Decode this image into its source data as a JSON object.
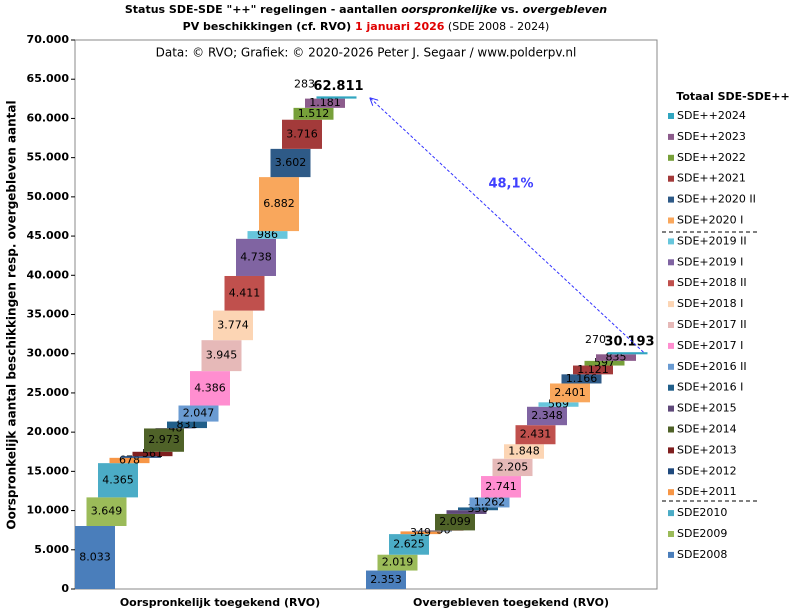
{
  "chart_data": {
    "type": "waterfall",
    "title_line1": [
      "Status SDE-SDE \"++\" regelingen - aantallen ",
      "oorspronkelijke",
      " vs. ",
      "overgebleven"
    ],
    "title_line2": [
      "PV beschikkingen (cf. RVO) ",
      "1 januari 2026",
      " (SDE 2008 - 2024)"
    ],
    "subtitle": "Data: © RVO; Grafiek: © 2020-2026 Peter J. Segaar / www.polderpv.nl",
    "y_label": "Oorspronkelijk aantal beschikkingen resp. overgebleven aantal",
    "legend_title": "Totaal SDE-SDE++",
    "categories": [
      "Oorspronkelijk toegekend (RVO)",
      "Overgebleven toegekend (RVO)"
    ],
    "ylim": [
      0,
      70000
    ],
    "yticks": [
      {
        "value": 0,
        "label": "0"
      },
      {
        "value": 5000,
        "label": "5.000"
      },
      {
        "value": 10000,
        "label": "10.000"
      },
      {
        "value": 15000,
        "label": "15.000"
      },
      {
        "value": 20000,
        "label": "20.000"
      },
      {
        "value": 25000,
        "label": "25.000"
      },
      {
        "value": 30000,
        "label": "30.000"
      },
      {
        "value": 35000,
        "label": "35.000"
      },
      {
        "value": 40000,
        "label": "40.000"
      },
      {
        "value": 45000,
        "label": "45.000"
      },
      {
        "value": 50000,
        "label": "50.000"
      },
      {
        "value": 55000,
        "label": "55.000"
      },
      {
        "value": 60000,
        "label": "60.000"
      },
      {
        "value": 65000,
        "label": "65.000"
      },
      {
        "value": 70000,
        "label": "70.000"
      }
    ],
    "series": [
      {
        "name": "SDE2008",
        "color": "#4a7ebb",
        "values": [
          8033,
          2353
        ],
        "value_labels": [
          "8.033",
          "2.353"
        ]
      },
      {
        "name": "SDE2009",
        "color": "#9bbb59",
        "values": [
          3649,
          2019
        ],
        "value_labels": [
          "3.649",
          "2.019"
        ]
      },
      {
        "name": "SDE2010",
        "color": "#4bacc6",
        "values": [
          4365,
          2625
        ],
        "value_labels": [
          "4.365",
          "2.625"
        ]
      },
      {
        "name": "SDE+2011",
        "color": "#f79646",
        "values": [
          678,
          349
        ],
        "value_labels": [
          "678",
          "349"
        ]
      },
      {
        "name": "SDE+2012",
        "color": "#1f497d",
        "values": [
          210,
          90
        ],
        "value_labels": [
          null,
          null
        ]
      },
      {
        "name": "SDE+2013",
        "color": "#7f1f1f",
        "values": [
          561,
          36
        ],
        "value_labels": [
          "561",
          "36"
        ]
      },
      {
        "name": "SDE+2014",
        "color": "#4f6228",
        "values": [
          2973,
          2099
        ],
        "value_labels": [
          "2.973",
          "2.099"
        ]
      },
      {
        "name": "SDE+2015",
        "color": "#5f497a",
        "values": [
          48,
          473
        ],
        "value_labels": [
          "48",
          null
        ]
      },
      {
        "name": "SDE+2016 I",
        "color": "#215f8a",
        "values": [
          831,
          356
        ],
        "value_labels": [
          "831",
          "356"
        ]
      },
      {
        "name": "SDE+2016 II",
        "color": "#6a9bd2",
        "values": [
          2047,
          1262
        ],
        "value_labels": [
          "2.047",
          "1.262"
        ]
      },
      {
        "name": "SDE+2017 I",
        "color": "#ff8ed0",
        "values": [
          4386,
          2741
        ],
        "value_labels": [
          "4.386",
          "2.741"
        ]
      },
      {
        "name": "SDE+2017 II",
        "color": "#e6b9b8",
        "values": [
          3945,
          2205
        ],
        "value_labels": [
          "3.945",
          "2.205"
        ]
      },
      {
        "name": "SDE+2018 I",
        "color": "#fcd5b4",
        "values": [
          3774,
          1848
        ],
        "value_labels": [
          "3.774",
          "1.848"
        ]
      },
      {
        "name": "SDE+2018 II",
        "color": "#c0504d",
        "values": [
          4411,
          2431
        ],
        "value_labels": [
          "4.411",
          "2.431"
        ]
      },
      {
        "name": "SDE+2019 I",
        "color": "#8064a2",
        "values": [
          4738,
          2348
        ],
        "value_labels": [
          "4.738",
          "2.348"
        ]
      },
      {
        "name": "SDE+2019 II",
        "color": "#67c6dc",
        "values": [
          986,
          569
        ],
        "value_labels": [
          "986",
          "569"
        ]
      },
      {
        "name": "SDE+2020 I",
        "color": "#f9a75c",
        "values": [
          6882,
          2401
        ],
        "value_labels": [
          "6.882",
          "2.401"
        ]
      },
      {
        "name": "SDE++2020 II",
        "color": "#2e5a87",
        "values": [
          3602,
          1166
        ],
        "value_labels": [
          "3.602",
          "1.166"
        ]
      },
      {
        "name": "SDE++2021",
        "color": "#a33a3a",
        "values": [
          3716,
          1121
        ],
        "value_labels": [
          "3.716",
          "1.121"
        ]
      },
      {
        "name": "SDE++2022",
        "color": "#77a03a",
        "values": [
          1512,
          597
        ],
        "value_labels": [
          "1.512",
          "597"
        ]
      },
      {
        "name": "SDE++2023",
        "color": "#8c5c8c",
        "values": [
          1181,
          835
        ],
        "value_labels": [
          "1.181",
          "835"
        ]
      },
      {
        "name": "SDE++2024",
        "color": "#31a6c0",
        "values": [
          283,
          270
        ],
        "value_labels": [
          "283",
          "270"
        ]
      }
    ],
    "totals": [
      62811,
      30193
    ],
    "total_labels": [
      "62.811",
      "30.193"
    ],
    "annotation": "48,1%"
  }
}
